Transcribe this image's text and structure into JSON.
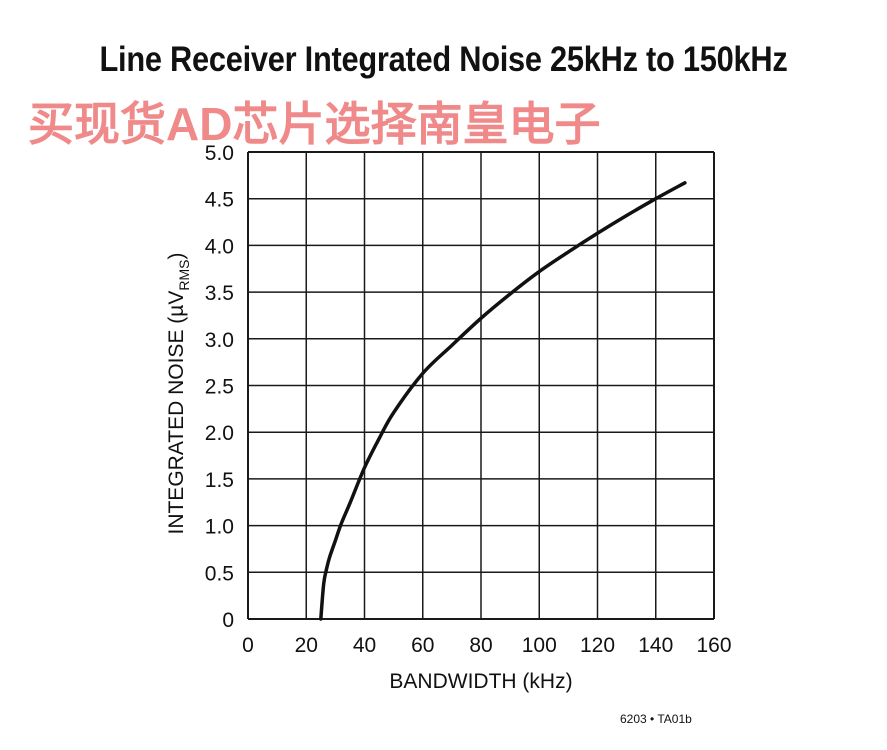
{
  "title": "Line Receiver Integrated Noise 25kHz to 150kHz",
  "watermark": "买现货AD芯片选择南皇电子",
  "figure_id": "6203 • TA01b",
  "colors": {
    "curve": "#111111",
    "grid": "#1a1a1a",
    "watermark": "#f08a8a"
  },
  "chart_data": {
    "type": "line",
    "xlabel": "BANDWIDTH (kHz)",
    "ylabel_main": "INTEGRATED NOISE (µV",
    "ylabel_sub": "RMS",
    "ylabel_close": ")",
    "xlim": [
      0,
      160
    ],
    "ylim": [
      0,
      5.0
    ],
    "xticks": [
      0,
      20,
      40,
      60,
      80,
      100,
      120,
      140,
      160
    ],
    "xtick_labels": [
      "0",
      "20",
      "40",
      "60",
      "80",
      "100",
      "120",
      "140",
      "160"
    ],
    "yticks": [
      0,
      0.5,
      1.0,
      1.5,
      2.0,
      2.5,
      3.0,
      3.5,
      4.0,
      4.5,
      5.0
    ],
    "ytick_labels": [
      "0",
      "0.5",
      "1.0",
      "1.5",
      "2.0",
      "2.5",
      "3.0",
      "3.5",
      "4.0",
      "4.5",
      "5.0"
    ],
    "grid": true,
    "series": [
      {
        "x": [
          25,
          26,
          27,
          28,
          30,
          32,
          35,
          40,
          45,
          50,
          60,
          70,
          80,
          90,
          100,
          110,
          120,
          130,
          140,
          150
        ],
        "y": [
          0,
          0.38,
          0.54,
          0.66,
          0.84,
          1.02,
          1.24,
          1.62,
          1.93,
          2.21,
          2.63,
          2.93,
          3.22,
          3.48,
          3.72,
          3.93,
          4.13,
          4.32,
          4.5,
          4.67
        ]
      }
    ]
  }
}
